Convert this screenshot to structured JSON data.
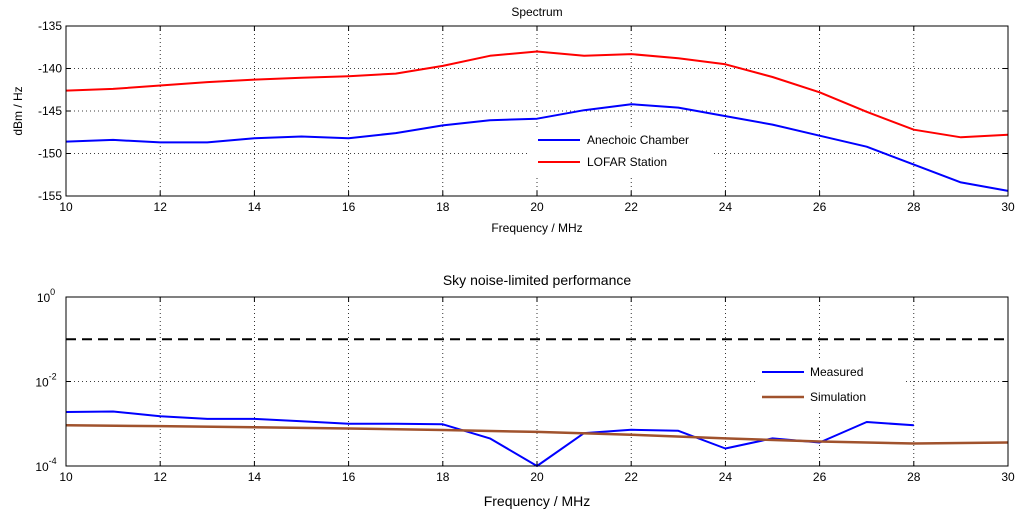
{
  "chart_data": [
    {
      "type": "line",
      "title": "Spectrum",
      "xlabel": "Frequency / MHz",
      "ylabel": "dBm / Hz",
      "xlim": [
        10,
        30
      ],
      "ylim": [
        -155,
        -135
      ],
      "xticks": [
        10,
        12,
        14,
        16,
        18,
        20,
        22,
        24,
        26,
        28,
        30
      ],
      "xtick_labels": [
        "10",
        "12",
        "14",
        "16",
        "18",
        "20",
        "22",
        "24",
        "26",
        "28",
        "30"
      ],
      "yticks": [
        -155,
        -150,
        -145,
        -140,
        -135
      ],
      "ytick_labels": [
        "-155",
        "-150",
        "-145",
        "-140",
        "-135"
      ],
      "grid": true,
      "legend_position": "inside-lower-center",
      "series": [
        {
          "name": "Anechoic Chamber",
          "color": "#0000ff",
          "x": [
            10,
            11,
            12,
            13,
            14,
            15,
            16,
            17,
            18,
            19,
            20,
            21,
            22,
            23,
            24,
            25,
            26,
            27,
            28,
            29,
            30
          ],
          "y": [
            -148.6,
            -148.4,
            -148.7,
            -148.7,
            -148.2,
            -148.0,
            -148.2,
            -147.6,
            -146.7,
            -146.1,
            -145.9,
            -144.9,
            -144.2,
            -144.6,
            -145.6,
            -146.6,
            -147.9,
            -149.2,
            -151.3,
            -153.4,
            -154.4
          ]
        },
        {
          "name": "LOFAR Station",
          "color": "#ff0000",
          "x": [
            10,
            11,
            12,
            13,
            14,
            15,
            16,
            17,
            18,
            19,
            20,
            21,
            22,
            23,
            24,
            25,
            26,
            27,
            28,
            29,
            30
          ],
          "y": [
            -142.6,
            -142.4,
            -142.0,
            -141.6,
            -141.3,
            -141.1,
            -140.9,
            -140.6,
            -139.7,
            -138.5,
            -138.0,
            -138.5,
            -138.3,
            -138.8,
            -139.5,
            -141.0,
            -142.8,
            -145.1,
            -147.2,
            -148.1,
            -147.8
          ]
        }
      ]
    },
    {
      "type": "line",
      "title": "Sky noise-limited performance",
      "xlabel": "Frequency / MHz",
      "ylabel": "",
      "xlim": [
        10,
        30
      ],
      "ylim": [
        0.0001,
        1
      ],
      "yscale": "log",
      "xticks": [
        10,
        12,
        14,
        16,
        18,
        20,
        22,
        24,
        26,
        28,
        30
      ],
      "xtick_labels": [
        "10",
        "12",
        "14",
        "16",
        "18",
        "20",
        "22",
        "24",
        "26",
        "28",
        "30"
      ],
      "yticks": [
        0.0001,
        0.01,
        1
      ],
      "ytick_labels": [
        {
          "base": "10",
          "exp": "-4"
        },
        {
          "base": "10",
          "exp": "-2"
        },
        {
          "base": "10",
          "exp": "0"
        }
      ],
      "grid": true,
      "legend_position": "inside-right",
      "reference_line": {
        "y": 0.1,
        "color": "#000000",
        "style": "dashed"
      },
      "series": [
        {
          "name": "Measured",
          "color": "#0000ff",
          "x": [
            10,
            11,
            12,
            13,
            14,
            15,
            16,
            17,
            18,
            19,
            20,
            21,
            22,
            23,
            24,
            25,
            26,
            27,
            28
          ],
          "y": [
            0.0019,
            0.00195,
            0.0015,
            0.0013,
            0.0013,
            0.00115,
            0.001,
            0.001,
            0.00097,
            0.00045,
            0.0001,
            0.0006,
            0.00072,
            0.00068,
            0.00026,
            0.00045,
            0.00036,
            0.0011,
            0.00092
          ]
        },
        {
          "name": "Simulation",
          "color": "#a0522d",
          "x": [
            10,
            12,
            14,
            16,
            18,
            20,
            22,
            24,
            26,
            28,
            30
          ],
          "y": [
            0.00092,
            0.00088,
            0.00083,
            0.00077,
            0.00071,
            0.00064,
            0.00055,
            0.00045,
            0.00038,
            0.00034,
            0.00036
          ]
        }
      ]
    }
  ]
}
